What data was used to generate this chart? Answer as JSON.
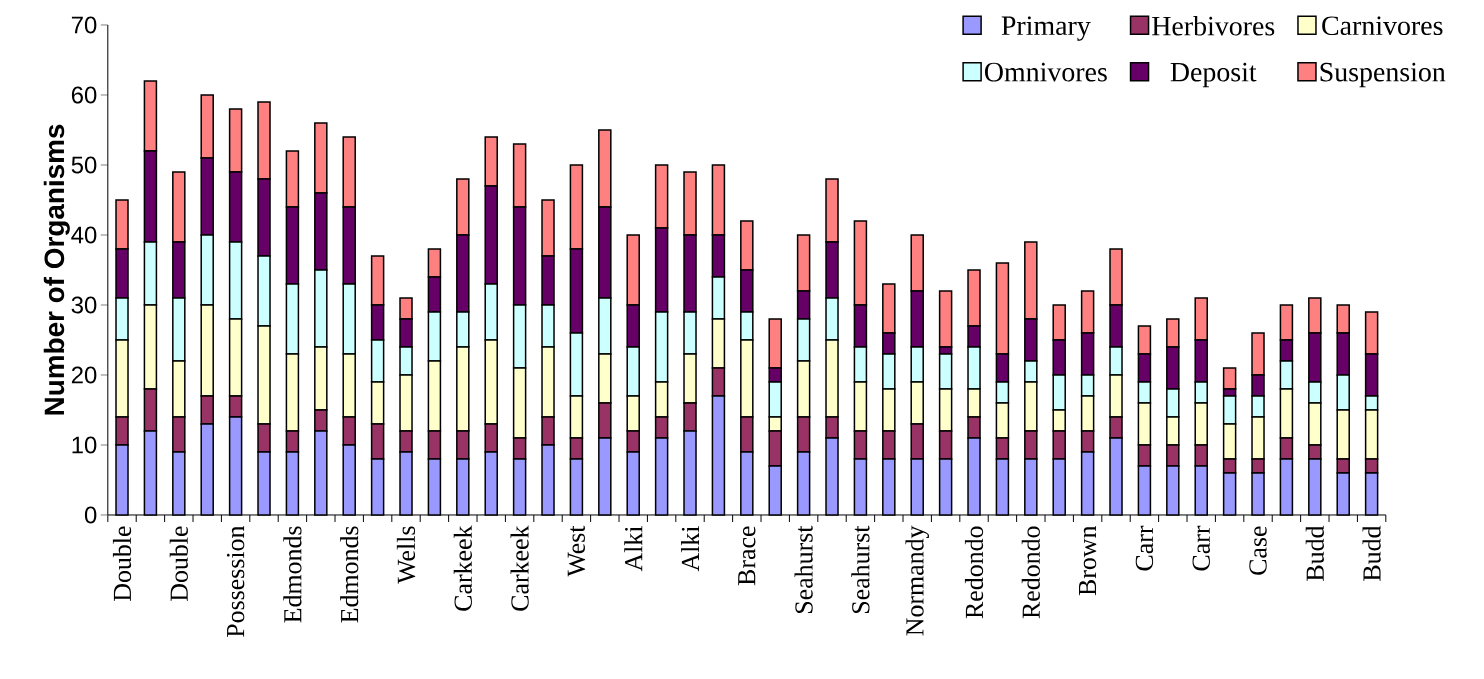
{
  "chart_data": {
    "type": "bar",
    "stacked": true,
    "ylabel": "Number of Organisms",
    "categories": [
      "Double",
      null,
      "Double",
      null,
      "Possession",
      null,
      "Edmonds",
      null,
      "Edmonds",
      null,
      "Wells",
      null,
      "Carkeek",
      null,
      "Carkeek",
      null,
      "West",
      null,
      "Alki",
      null,
      "Alki",
      null,
      "Brace",
      null,
      "Seahurst",
      null,
      "Seahurst",
      null,
      "Normandy",
      null,
      "Redondo",
      null,
      "Redondo",
      null,
      "Brown",
      null,
      "Carr",
      null,
      "Carr",
      null,
      "Case",
      null,
      "Budd",
      null,
      "Budd"
    ],
    "series": [
      {
        "name": "Primary",
        "color": "#9999ff",
        "values": [
          10,
          12,
          9,
          13,
          14,
          9,
          9,
          12,
          10,
          8,
          9,
          8,
          8,
          9,
          8,
          10,
          8,
          11,
          9,
          11,
          12,
          17,
          9,
          7,
          9,
          11,
          8,
          8,
          8,
          8,
          11,
          8,
          8,
          8,
          9,
          11,
          7,
          7,
          7,
          6,
          6,
          8,
          8,
          6,
          6
        ]
      },
      {
        "name": "Herbivores",
        "color": "#993366",
        "values": [
          4,
          6,
          5,
          4,
          3,
          4,
          3,
          3,
          4,
          5,
          3,
          4,
          4,
          4,
          3,
          4,
          3,
          5,
          3,
          3,
          4,
          4,
          5,
          5,
          5,
          3,
          4,
          4,
          5,
          4,
          3,
          3,
          4,
          4,
          3,
          3,
          3,
          3,
          3,
          2,
          2,
          3,
          2,
          2,
          2
        ]
      },
      {
        "name": "Carnivores",
        "color": "#ffffcc",
        "values": [
          11,
          12,
          8,
          13,
          11,
          14,
          11,
          9,
          9,
          6,
          8,
          10,
          12,
          12,
          10,
          10,
          6,
          7,
          5,
          5,
          7,
          7,
          11,
          2,
          8,
          11,
          7,
          6,
          6,
          6,
          4,
          5,
          7,
          3,
          5,
          6,
          6,
          4,
          6,
          5,
          6,
          7,
          6,
          7,
          7
        ]
      },
      {
        "name": "Omnivores",
        "color": "#ccffff",
        "values": [
          6,
          9,
          9,
          10,
          11,
          10,
          10,
          11,
          10,
          6,
          4,
          7,
          5,
          8,
          9,
          6,
          9,
          8,
          7,
          10,
          6,
          6,
          4,
          5,
          6,
          6,
          5,
          5,
          5,
          5,
          6,
          3,
          3,
          5,
          3,
          4,
          3,
          4,
          3,
          4,
          3,
          4,
          3,
          5,
          2
        ]
      },
      {
        "name": "Deposit",
        "color": "#660066",
        "values": [
          7,
          13,
          8,
          11,
          10,
          11,
          11,
          11,
          11,
          5,
          4,
          5,
          11,
          14,
          14,
          7,
          12,
          13,
          6,
          12,
          11,
          6,
          6,
          2,
          4,
          8,
          6,
          3,
          8,
          1,
          3,
          4,
          6,
          5,
          6,
          6,
          4,
          6,
          6,
          1,
          3,
          3,
          7,
          6,
          6
        ]
      },
      {
        "name": "Suspension",
        "color": "#ff8080",
        "values": [
          7,
          10,
          10,
          9,
          9,
          11,
          8,
          10,
          10,
          7,
          3,
          4,
          8,
          7,
          9,
          8,
          12,
          11,
          10,
          9,
          9,
          10,
          7,
          7,
          8,
          9,
          12,
          7,
          8,
          8,
          8,
          13,
          11,
          5,
          6,
          8,
          4,
          4,
          6,
          3,
          6,
          5,
          5,
          4,
          6
        ]
      }
    ],
    "ylim": [
      0,
      70
    ],
    "yticks": [
      0,
      10,
      20,
      30,
      40,
      50,
      60,
      70
    ],
    "legend": "top right",
    "grid": false
  }
}
